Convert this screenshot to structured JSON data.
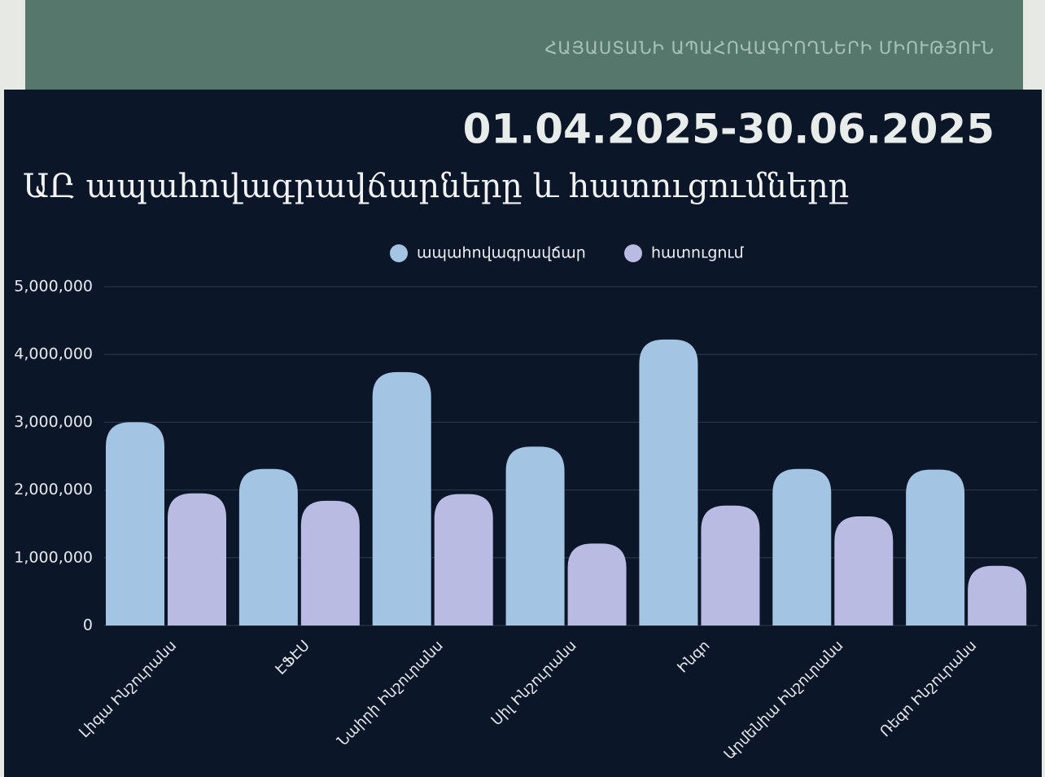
{
  "header": "ՀԱՅԱՍՏԱՆԻ ԱՊԱՀՈՎԱԳՐՈՂՆԵՐԻ ՄԻՈՒԹՅՈՒՆ",
  "period": "01.04.2025-30.06.2025",
  "chart_data": {
    "type": "bar",
    "title": "ԱԸ ապահովագրավճարները և հատուցումները",
    "categories": [
      "Լիգա Ինշուրանս",
      "ԷՖԷՍ",
      "Նաիրի Ինշուրանս",
      "Սիլ Ինշուրանս",
      "Ինգո",
      "Արմենիա Ինշուրանս",
      "Ռեգո Ինշուրանս"
    ],
    "series": [
      {
        "name": "ապահովագրավճար",
        "color": "#a3c4e2",
        "values": [
          3000000,
          2310000,
          3740000,
          2640000,
          4220000,
          2310000,
          2300000
        ]
      },
      {
        "name": "հատուցում",
        "color": "#b9bbe3",
        "values": [
          1950000,
          1840000,
          1940000,
          1210000,
          1770000,
          1610000,
          880000
        ]
      }
    ],
    "ylim": [
      0,
      5000000
    ],
    "yticks": [
      0,
      {
        "value": 1000000,
        "label": "1,000,000"
      },
      {
        "value": 2000000,
        "label": "2,000,000"
      },
      {
        "value": 3000000,
        "label": "3,000,000"
      },
      {
        "value": 4000000,
        "label": "4,000,000"
      },
      {
        "value": 5000000,
        "label": "5,000,000"
      }
    ],
    "grid": true,
    "legend": "top"
  }
}
